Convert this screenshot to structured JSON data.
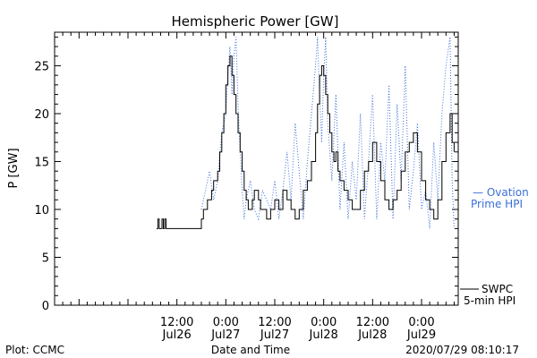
{
  "chart_data": {
    "type": "line",
    "title": "Hemispheric Power [GW]",
    "ylabel": "P [GW]",
    "xlabel": "Date and Time",
    "ylim": [
      0,
      28.5
    ],
    "xlim": [
      "2020-07-25 06:00",
      "2020-07-29 09:00"
    ],
    "yticks": [
      0,
      5,
      10,
      15,
      20,
      25
    ],
    "xticks": [
      {
        "x": "2020-07-26 12:00",
        "time": "12:00",
        "date": "Jul26"
      },
      {
        "x": "2020-07-27 00:00",
        "time": "0:00",
        "date": "Jul27"
      },
      {
        "x": "2020-07-27 12:00",
        "time": "12:00",
        "date": "Jul27"
      },
      {
        "x": "2020-07-28 00:00",
        "time": "0:00",
        "date": "Jul28"
      },
      {
        "x": "2020-07-28 12:00",
        "time": "12:00",
        "date": "Jul28"
      },
      {
        "x": "2020-07-29 00:00",
        "time": "0:00",
        "date": "Jul29"
      }
    ],
    "series": [
      {
        "name": "SWPC 5-min HPI",
        "color": "#000000",
        "style": "solid",
        "x": [
          "2020-07-26 07:00",
          "2020-07-26 07:20",
          "2020-07-26 07:40",
          "2020-07-26 08:00",
          "2020-07-26 08:20",
          "2020-07-26 08:40",
          "2020-07-26 09:00",
          "2020-07-26 09:20",
          "2020-07-26 09:40",
          "2020-07-26 10:00",
          "2020-07-26 11:00",
          "2020-07-26 12:00",
          "2020-07-26 13:00",
          "2020-07-26 14:00",
          "2020-07-26 15:00",
          "2020-07-26 16:00",
          "2020-07-26 17:00",
          "2020-07-26 18:00",
          "2020-07-26 18:30",
          "2020-07-26 19:00",
          "2020-07-26 19:30",
          "2020-07-26 20:00",
          "2020-07-26 20:30",
          "2020-07-26 21:00",
          "2020-07-26 22:00",
          "2020-07-26 22:30",
          "2020-07-26 23:00",
          "2020-07-26 23:30",
          "2020-07-27 00:00",
          "2020-07-27 00:30",
          "2020-07-27 01:00",
          "2020-07-27 01:30",
          "2020-07-27 02:00",
          "2020-07-27 02:30",
          "2020-07-27 03:00",
          "2020-07-27 03:30",
          "2020-07-27 04:00",
          "2020-07-27 04:30",
          "2020-07-27 05:00",
          "2020-07-27 05:30",
          "2020-07-27 06:00",
          "2020-07-27 06:30",
          "2020-07-27 07:00",
          "2020-07-27 08:00",
          "2020-07-27 08:30",
          "2020-07-27 09:00",
          "2020-07-27 10:00",
          "2020-07-27 11:00",
          "2020-07-27 12:00",
          "2020-07-27 13:00",
          "2020-07-27 14:00",
          "2020-07-27 15:00",
          "2020-07-27 16:00",
          "2020-07-27 17:00",
          "2020-07-27 18:00",
          "2020-07-27 19:00",
          "2020-07-27 20:00",
          "2020-07-27 21:00",
          "2020-07-27 22:00",
          "2020-07-27 22:30",
          "2020-07-27 23:00",
          "2020-07-27 23:30",
          "2020-07-28 00:00",
          "2020-07-28 00:30",
          "2020-07-28 01:00",
          "2020-07-28 01:30",
          "2020-07-28 02:00",
          "2020-07-28 02:30",
          "2020-07-28 03:00",
          "2020-07-28 03:30",
          "2020-07-28 04:00",
          "2020-07-28 05:00",
          "2020-07-28 06:00",
          "2020-07-28 07:00",
          "2020-07-28 08:00",
          "2020-07-28 09:00",
          "2020-07-28 10:00",
          "2020-07-28 11:00",
          "2020-07-28 12:00",
          "2020-07-28 13:00",
          "2020-07-28 14:00",
          "2020-07-28 15:00",
          "2020-07-28 16:00",
          "2020-07-28 17:00",
          "2020-07-28 18:00",
          "2020-07-28 19:00",
          "2020-07-28 20:00",
          "2020-07-28 21:00",
          "2020-07-28 22:00",
          "2020-07-28 23:00",
          "2020-07-29 00:00",
          "2020-07-29 01:00",
          "2020-07-29 02:00",
          "2020-07-29 03:00",
          "2020-07-29 04:00",
          "2020-07-29 05:00",
          "2020-07-29 06:00",
          "2020-07-29 07:00",
          "2020-07-29 07:30",
          "2020-07-29 08:00"
        ],
        "values": [
          8,
          9,
          8,
          8,
          9,
          8,
          9,
          8,
          8,
          8,
          8,
          8,
          8,
          8,
          8,
          8,
          8,
          9,
          10,
          10,
          11,
          11,
          12,
          13,
          14,
          16,
          18,
          20,
          23,
          25,
          26,
          24,
          22,
          20,
          18,
          16,
          14,
          12,
          11,
          10,
          10,
          11,
          12,
          11,
          10,
          10,
          9,
          10,
          11,
          10,
          12,
          11,
          10,
          9,
          10,
          12,
          13,
          15,
          18,
          21,
          24,
          25,
          24,
          22,
          20,
          18,
          16,
          15,
          16,
          14,
          13,
          12,
          11,
          10,
          10,
          12,
          14,
          15,
          17,
          15,
          13,
          11,
          10,
          11,
          12,
          14,
          16,
          17,
          18,
          16,
          13,
          11,
          10,
          9,
          11,
          15,
          18,
          20,
          17,
          16
        ]
      },
      {
        "name": "Ovation Prime HPI",
        "color": "#3a6fd8",
        "style": "dotted",
        "x": [
          "2020-07-26 18:00",
          "2020-07-26 19:00",
          "2020-07-26 20:00",
          "2020-07-26 21:00",
          "2020-07-26 22:00",
          "2020-07-26 23:00",
          "2020-07-27 00:00",
          "2020-07-27 00:30",
          "2020-07-27 01:00",
          "2020-07-27 01:30",
          "2020-07-27 02:00",
          "2020-07-27 02:30",
          "2020-07-27 03:00",
          "2020-07-27 03:30",
          "2020-07-27 04:00",
          "2020-07-27 04:30",
          "2020-07-27 05:00",
          "2020-07-27 06:00",
          "2020-07-27 07:00",
          "2020-07-27 08:00",
          "2020-07-27 09:00",
          "2020-07-27 10:00",
          "2020-07-27 11:00",
          "2020-07-27 12:00",
          "2020-07-27 13:00",
          "2020-07-27 14:00",
          "2020-07-27 15:00",
          "2020-07-27 16:00",
          "2020-07-27 17:00",
          "2020-07-27 18:00",
          "2020-07-27 19:00",
          "2020-07-27 20:00",
          "2020-07-27 21:00",
          "2020-07-27 22:00",
          "2020-07-27 22:30",
          "2020-07-27 23:00",
          "2020-07-27 23:30",
          "2020-07-28 00:00",
          "2020-07-28 00:30",
          "2020-07-28 01:00",
          "2020-07-28 02:00",
          "2020-07-28 03:00",
          "2020-07-28 04:00",
          "2020-07-28 05:00",
          "2020-07-28 06:00",
          "2020-07-28 07:00",
          "2020-07-28 08:00",
          "2020-07-28 09:00",
          "2020-07-28 10:00",
          "2020-07-28 11:00",
          "2020-07-28 12:00",
          "2020-07-28 13:00",
          "2020-07-28 14:00",
          "2020-07-28 15:00",
          "2020-07-28 16:00",
          "2020-07-28 17:00",
          "2020-07-28 18:00",
          "2020-07-28 19:00",
          "2020-07-28 20:00",
          "2020-07-28 21:00",
          "2020-07-28 22:00",
          "2020-07-28 23:00",
          "2020-07-29 00:00",
          "2020-07-29 01:00",
          "2020-07-29 02:00",
          "2020-07-29 03:00",
          "2020-07-29 04:00",
          "2020-07-29 05:00",
          "2020-07-29 06:00",
          "2020-07-29 07:00",
          "2020-07-29 07:30",
          "2020-07-29 08:00"
        ],
        "values": [
          10,
          12,
          14,
          11,
          13,
          18,
          20,
          24,
          27,
          22,
          26,
          28,
          21,
          16,
          12,
          9,
          11,
          13,
          10,
          9,
          12,
          11,
          10,
          13,
          9,
          12,
          16,
          11,
          19,
          14,
          9,
          15,
          20,
          25,
          28,
          22,
          17,
          24,
          28,
          19,
          13,
          22,
          10,
          17,
          9,
          15,
          11,
          20,
          9,
          15,
          22,
          9,
          17,
          13,
          23,
          9,
          21,
          13,
          25,
          10,
          14,
          19,
          10,
          12,
          8,
          17,
          11,
          20,
          25,
          28,
          13,
          8
        ]
      }
    ]
  },
  "legend": {
    "items": [
      {
        "line1": "— Ovation",
        "line2": "Prime HPI",
        "color": "#3a6fd8",
        "placement": "right-middle"
      },
      {
        "line1": "SWPC",
        "line2": "5-min HPI",
        "color": "#000000",
        "placement": "right-bottom"
      }
    ]
  },
  "footer": {
    "left": "Plot: CCMC",
    "center": "Date and Time",
    "right": "2020/07/29 08:10:17"
  }
}
